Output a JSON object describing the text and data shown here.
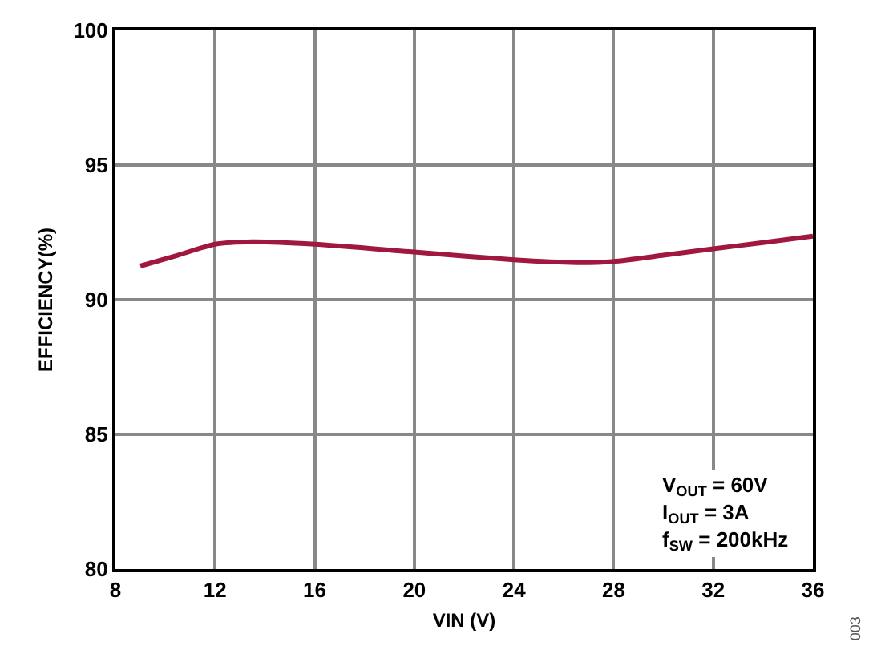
{
  "chart_data": {
    "type": "line",
    "xlabel": "VIN (V)",
    "ylabel": "EFFICIENCY(%)",
    "x": [
      9,
      10.5,
      12,
      13.5,
      16,
      20,
      24,
      26.5,
      28,
      30,
      32,
      34,
      36
    ],
    "series": [
      {
        "color": "#a0173f",
        "values": [
          91.25,
          91.65,
          92.06,
          92.15,
          92.06,
          91.77,
          91.48,
          91.38,
          91.42,
          91.65,
          91.89,
          92.12,
          92.36
        ]
      }
    ],
    "xlim": [
      8,
      36
    ],
    "xticks": [
      8,
      12,
      16,
      20,
      24,
      28,
      32,
      36
    ],
    "ylim": [
      80,
      100
    ],
    "yticks": [
      80,
      85,
      90,
      95,
      100
    ],
    "grid": true,
    "marker": "none",
    "line_style": "solid",
    "annotations": [
      "V$_{OUT}$ = 60V\nI$_{OUT}$ = 3A\nf$_{SW}$ = 200kHz",
      "003"
    ]
  }
}
